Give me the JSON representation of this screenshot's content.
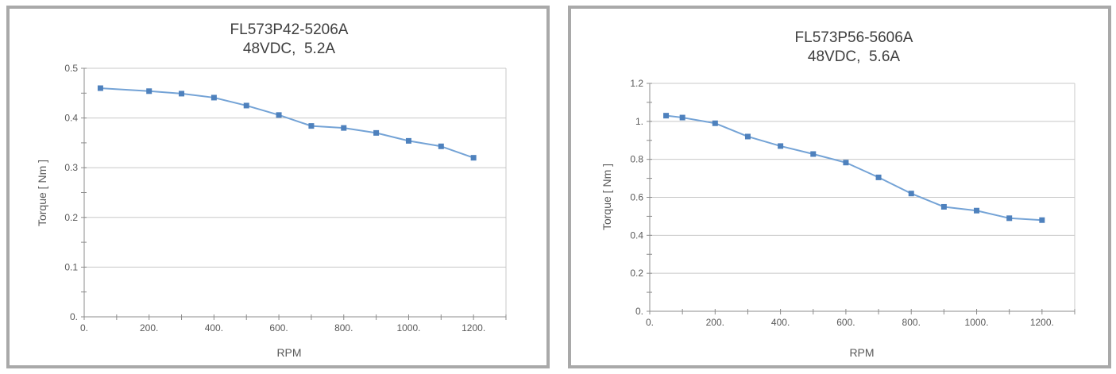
{
  "chart_data": [
    {
      "type": "line",
      "title": "FL573P42-5206A",
      "subtitle": "48VDC,  5.2A",
      "xlabel": "RPM",
      "ylabel": "Torque [ Nm ]",
      "x": [
        50,
        200,
        300,
        400,
        500,
        600,
        700,
        800,
        900,
        1000,
        1100,
        1200
      ],
      "y": [
        0.46,
        0.454,
        0.449,
        0.441,
        0.425,
        0.406,
        0.384,
        0.38,
        0.37,
        0.354,
        0.343,
        0.32
      ],
      "xlim": [
        0,
        1300
      ],
      "ylim": [
        0,
        0.5
      ],
      "x_labeled_ticks": [
        0,
        200,
        400,
        600,
        800,
        1000,
        1200
      ],
      "x_minor_step": 100,
      "y_major_step": 0.1,
      "y_minor_step": 0.05,
      "grid": "horizontal",
      "legend": "none",
      "line_color": "#74a3d6",
      "marker_color": "#4e81bd",
      "marker_shape": "square"
    },
    {
      "type": "line",
      "title": "FL573P56-5606A",
      "subtitle": "48VDC,  5.6A",
      "xlabel": "RPM",
      "ylabel": "Torque [ Nm ]",
      "x": [
        50,
        100,
        200,
        300,
        400,
        500,
        600,
        700,
        800,
        900,
        1000,
        1100,
        1200
      ],
      "y": [
        1.03,
        1.02,
        0.99,
        0.92,
        0.87,
        0.828,
        0.783,
        0.705,
        0.62,
        0.55,
        0.53,
        0.49,
        0.48
      ],
      "xlim": [
        0,
        1300
      ],
      "ylim": [
        0,
        1.2
      ],
      "x_labeled_ticks": [
        0,
        200,
        400,
        600,
        800,
        1000,
        1200
      ],
      "x_minor_step": 100,
      "y_major_step": 0.2,
      "y_minor_step": 0.1,
      "grid": "horizontal",
      "legend": "none",
      "line_color": "#74a3d6",
      "marker_color": "#4e81bd",
      "marker_shape": "square"
    }
  ]
}
